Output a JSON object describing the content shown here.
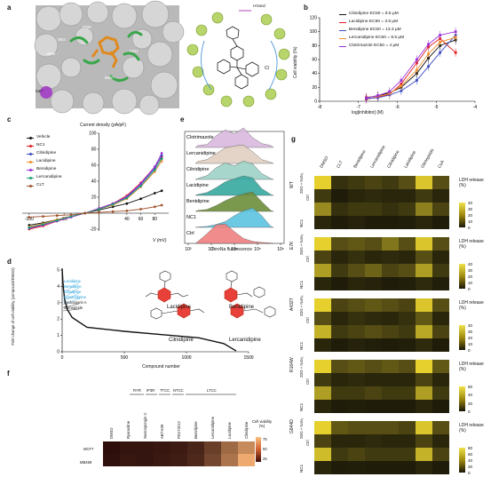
{
  "panels": {
    "a": "a",
    "b": "b",
    "c": "c",
    "d": "d",
    "e": "e",
    "f": "f",
    "g": "g"
  },
  "panel_a": {
    "residues": [
      "V904",
      "F936",
      "H906",
      "F931",
      "M927",
      "Ca²⁺"
    ],
    "legend": "H-bond"
  },
  "panel_b": {
    "chart_data": {
      "type": "line",
      "xlabel": "log[inhibitor] (M)",
      "ylabel": "Cell viability (%)",
      "xlim": [
        -8,
        -4
      ],
      "ylim": [
        0,
        120
      ],
      "xticks": [
        "-8",
        "-7",
        "-6",
        "-5",
        "-4"
      ],
      "yticks": [
        "0",
        "20",
        "40",
        "60",
        "80",
        "100",
        "120"
      ],
      "series": [
        {
          "name": "Cilnidipine EC50 = 8.5 μM",
          "color": "#111111",
          "points": [
            [
              -6.8,
              5
            ],
            [
              -6.5,
              8
            ],
            [
              -6.2,
              12
            ],
            [
              -5.9,
              20
            ],
            [
              -5.5,
              40
            ],
            [
              -5.2,
              62
            ],
            [
              -4.9,
              80
            ],
            [
              -4.5,
              88
            ]
          ]
        },
        {
          "name": "Lacidipine EC50 = 3.8 μM",
          "color": "#e41a1c",
          "points": [
            [
              -6.8,
              3
            ],
            [
              -6.5,
              6
            ],
            [
              -6.2,
              10
            ],
            [
              -5.9,
              25
            ],
            [
              -5.5,
              55
            ],
            [
              -5.2,
              78
            ],
            [
              -4.9,
              90
            ],
            [
              -4.5,
              70
            ]
          ]
        },
        {
          "name": "Benidipine EC50 = 13.3 μM",
          "color": "#3b4cc0",
          "points": [
            [
              -6.8,
              4
            ],
            [
              -6.5,
              5
            ],
            [
              -6.2,
              9
            ],
            [
              -5.9,
              15
            ],
            [
              -5.5,
              30
            ],
            [
              -5.2,
              50
            ],
            [
              -4.9,
              70
            ],
            [
              -4.5,
              95
            ]
          ]
        },
        {
          "name": "Lercanidipine EC50 = 9.5 μM",
          "color": "#f28e2b",
          "points": [
            [
              -6.8,
              6
            ],
            [
              -6.5,
              7
            ],
            [
              -6.2,
              11
            ],
            [
              -5.9,
              22
            ],
            [
              -5.5,
              45
            ],
            [
              -5.2,
              68
            ],
            [
              -4.9,
              85
            ],
            [
              -4.5,
              92
            ]
          ]
        },
        {
          "name": "Clotrimazole EC50 = 4 μM",
          "color": "#9b30d9",
          "points": [
            [
              -6.8,
              5
            ],
            [
              -6.5,
              8
            ],
            [
              -6.2,
              14
            ],
            [
              -5.9,
              30
            ],
            [
              -5.5,
              60
            ],
            [
              -5.2,
              82
            ],
            [
              -4.9,
              95
            ],
            [
              -4.5,
              100
            ]
          ]
        }
      ]
    }
  },
  "panel_c": {
    "chart_data": {
      "type": "line",
      "title": "Current density (pA/pF)",
      "xlabel": "V (mV)",
      "xticks": [
        "-100",
        "-50",
        "40",
        "60",
        "80"
      ],
      "yticks": [
        "-20",
        "20",
        "40",
        "60",
        "80",
        "100"
      ],
      "series": [
        {
          "name": "Vehicle",
          "color": "#111111",
          "points": [
            [
              -100,
              -15
            ],
            [
              -80,
              -12
            ],
            [
              -60,
              -8
            ],
            [
              -40,
              -4
            ],
            [
              -20,
              0
            ],
            [
              0,
              4
            ],
            [
              20,
              8
            ],
            [
              40,
              12
            ],
            [
              60,
              18
            ],
            [
              80,
              25
            ],
            [
              90,
              28
            ]
          ]
        },
        {
          "name": "NC1",
          "color": "#e41a1c",
          "points": [
            [
              -100,
              -20
            ],
            [
              -80,
              -16
            ],
            [
              -60,
              -10
            ],
            [
              -40,
              -5
            ],
            [
              -20,
              0
            ],
            [
              0,
              6
            ],
            [
              20,
              12
            ],
            [
              40,
              22
            ],
            [
              60,
              38
            ],
            [
              80,
              58
            ],
            [
              90,
              70
            ]
          ]
        },
        {
          "name": "Cilnidipine",
          "color": "#3b4cc0",
          "points": [
            [
              -100,
              -18
            ],
            [
              -80,
              -14
            ],
            [
              -60,
              -9
            ],
            [
              -40,
              -4
            ],
            [
              -20,
              0
            ],
            [
              0,
              5
            ],
            [
              20,
              11
            ],
            [
              40,
              20
            ],
            [
              60,
              36
            ],
            [
              80,
              56
            ],
            [
              90,
              72
            ]
          ]
        },
        {
          "name": "Lacidipine",
          "color": "#f28e2b",
          "points": [
            [
              -100,
              -17
            ],
            [
              -80,
              -13
            ],
            [
              -60,
              -8
            ],
            [
              -40,
              -4
            ],
            [
              -20,
              0
            ],
            [
              0,
              5
            ],
            [
              20,
              10
            ],
            [
              40,
              18
            ],
            [
              60,
              33
            ],
            [
              80,
              52
            ],
            [
              90,
              65
            ]
          ]
        },
        {
          "name": "Benidipine",
          "color": "#9b30d9",
          "points": [
            [
              -100,
              -19
            ],
            [
              -80,
              -15
            ],
            [
              -60,
              -10
            ],
            [
              -40,
              -5
            ],
            [
              -20,
              0
            ],
            [
              0,
              6
            ],
            [
              20,
              12
            ],
            [
              40,
              21
            ],
            [
              60,
              37
            ],
            [
              80,
              58
            ],
            [
              90,
              75
            ]
          ]
        },
        {
          "name": "Lercanidipine",
          "color": "#1b9e77",
          "points": [
            [
              -100,
              -18
            ],
            [
              -80,
              -14
            ],
            [
              -60,
              -9
            ],
            [
              -40,
              -4
            ],
            [
              -20,
              0
            ],
            [
              0,
              5
            ],
            [
              20,
              11
            ],
            [
              40,
              19
            ],
            [
              60,
              34
            ],
            [
              80,
              54
            ],
            [
              90,
              68
            ]
          ]
        },
        {
          "name": "CLT",
          "color": "#a0522d",
          "points": [
            [
              -100,
              -5
            ],
            [
              -80,
              -4
            ],
            [
              -60,
              -3
            ],
            [
              -40,
              -2
            ],
            [
              -20,
              0
            ],
            [
              0,
              1
            ],
            [
              20,
              2
            ],
            [
              40,
              3
            ],
            [
              60,
              5
            ],
            [
              80,
              8
            ],
            [
              90,
              10
            ]
          ]
        }
      ]
    }
  },
  "panel_d": {
    "chart_data": {
      "type": "line",
      "xlabel": "Compound number",
      "ylabel": "Fold change of cell viability (compound/DMSO)",
      "xticks": [
        "0",
        "500",
        "1000",
        "1500"
      ],
      "yticks": [
        "0",
        "1",
        "2",
        "3",
        "4",
        "5"
      ],
      "series": [
        {
          "name": "",
          "points": [
            [
              0,
              5.1
            ],
            [
              5,
              4.4
            ],
            [
              10,
              3.9
            ],
            [
              20,
              3.2
            ],
            [
              40,
              2.6
            ],
            [
              80,
              2.1
            ],
            [
              200,
              1.5
            ],
            [
              500,
              1.25
            ],
            [
              800,
              1.05
            ],
            [
              1100,
              0.85
            ],
            [
              1300,
              0.5
            ],
            [
              1400,
              0.05
            ]
          ]
        }
      ],
      "labels": [
        "Lacidipine",
        "Benidipine",
        "Cilnidipine",
        "Lercanidipine",
        "Cyclosporin A",
        "Glimepiride"
      ],
      "structures": [
        "Lacidipine",
        "Benidipine",
        "Cilnidipine",
        "Lercanidipine"
      ]
    }
  },
  "panel_e": {
    "chart_data": {
      "type": "area",
      "xlabel": "CoroNa fluorescence",
      "xticks": [
        "10²",
        "10³",
        "10⁴",
        "10⁵",
        "10⁶"
      ],
      "series": [
        {
          "name": "Clotrimazole",
          "color": "#d9b8df"
        },
        {
          "name": "Lercanidipine",
          "color": "#e1cfc2"
        },
        {
          "name": "Cilnidipine",
          "color": "#9cd2c6"
        },
        {
          "name": "Lacidipine",
          "color": "#36a8a0"
        },
        {
          "name": "Benidipine",
          "color": "#6d8e3a"
        },
        {
          "name": "NC1",
          "color": "#5bc3e0"
        },
        {
          "name": "Ctrl",
          "color": "#f08080"
        }
      ]
    }
  },
  "panel_f": {
    "groups": [
      "RYR",
      "IP3R",
      "TTCC",
      "NTCC",
      "LTCC"
    ],
    "columns": [
      "DMSO",
      "Ryanodine",
      "Xestospongin C",
      "ABT-639",
      "PD173212",
      "Benidipine",
      "Lercanidipine",
      "Lacidipine",
      "Cilnidipine"
    ],
    "rows": [
      "MCF7",
      "MB468"
    ],
    "values": [
      [
        2,
        5,
        5,
        6,
        8,
        12,
        25,
        45,
        60
      ],
      [
        3,
        6,
        5,
        7,
        9,
        14,
        28,
        50,
        75
      ]
    ],
    "cbar_title": "Cell viability (%)",
    "cbar_ticks": [
      "75",
      "50",
      "25"
    ]
  },
  "panel_g": {
    "columns": [
      "DMSO",
      "CLT",
      "Benidipine",
      "Lercanidipine",
      "Cilnidipine",
      "Lacidipine",
      "Glimepiride",
      "CsA"
    ],
    "blocks": [
      {
        "name": "WT",
        "treat": "2DG + NaN₃",
        "ctrl": "Ctrl",
        "nc": "NC1",
        "cbar": [
          "40",
          "30",
          "20",
          "10",
          "0"
        ]
      },
      {
        "name": "E7K",
        "treat": "2DG + NaN₃",
        "ctrl": "Ctrl",
        "nc": "NC1",
        "cbar": [
          "40",
          "30",
          "20",
          "10",
          "0"
        ]
      },
      {
        "name": "A432T",
        "treat": "2DG + NaN₃",
        "ctrl": "Ctrl",
        "nc": "NC1",
        "cbar": [
          "40",
          "30",
          "20",
          "10",
          "0"
        ]
      },
      {
        "name": "R164W",
        "treat": "2DG + NaN₃",
        "ctrl": "Ctrl",
        "nc": "NC1",
        "cbar": [
          "60",
          "40",
          "20",
          "0"
        ]
      },
      {
        "name": "G844D",
        "treat": "2DG + NaN₃",
        "ctrl": "Ctrl",
        "nc": "NC1",
        "cbar": [
          "80",
          "60",
          "40",
          "20",
          "0"
        ]
      }
    ],
    "cbar_title": "LDH release (%)"
  }
}
